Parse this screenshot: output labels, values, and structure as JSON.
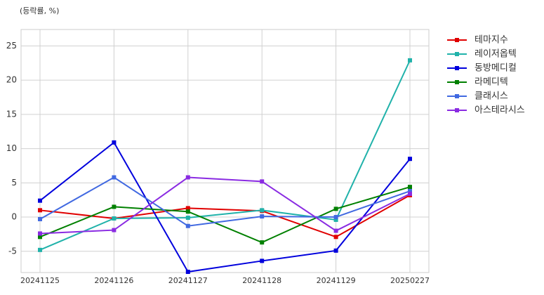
{
  "chart_data": {
    "type": "line",
    "y_label": "(등락률, %)",
    "categories": [
      "20241125",
      "20241126",
      "20241127",
      "20241128",
      "20241129",
      "20250227"
    ],
    "series": [
      {
        "name": "테마지수",
        "color": "#e00000",
        "values": [
          1.0,
          -0.2,
          1.3,
          0.9,
          -2.9,
          3.2
        ]
      },
      {
        "name": "레이저옵텍",
        "color": "#20b2aa",
        "values": [
          -4.8,
          -0.2,
          -0.1,
          1.0,
          -0.4,
          22.9
        ]
      },
      {
        "name": "동방메디컬",
        "color": "#0000dd",
        "values": [
          2.4,
          10.9,
          -8.0,
          -6.4,
          -4.9,
          8.5
        ]
      },
      {
        "name": "라메디텍",
        "color": "#008000",
        "values": [
          -2.9,
          1.5,
          0.8,
          -3.7,
          1.2,
          4.4
        ]
      },
      {
        "name": "클래시스",
        "color": "#4169e1",
        "values": [
          -0.3,
          5.8,
          -1.3,
          0.1,
          0.0,
          3.8
        ]
      },
      {
        "name": "아스테라시스",
        "color": "#8a2be2",
        "values": [
          -2.4,
          -1.9,
          5.8,
          5.2,
          -2.0,
          3.4
        ]
      }
    ],
    "ylim": [
      -8.1,
      27.4
    ],
    "yticks": [
      -5,
      0,
      5,
      10,
      15,
      20,
      25
    ],
    "grid": true,
    "legend": "outside-right"
  }
}
